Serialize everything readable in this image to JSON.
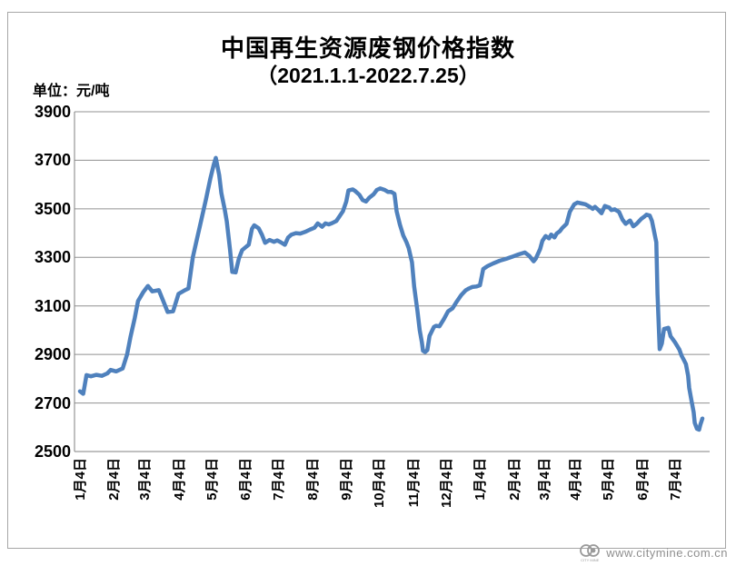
{
  "page": {
    "background": "#FFFFFF",
    "border_color": "#A6A6A6"
  },
  "header": {
    "title": "中国再生资源废钢价格指数",
    "subtitle": "（2021.1.1-2022.7.25）",
    "unit_label": "单位：元/吨"
  },
  "watermark": {
    "url": "www.citymine.com.cn",
    "logo_caption": "CITY MINE"
  },
  "chart_data": {
    "type": "line",
    "title": "中国再生资源废钢价格指数",
    "subtitle_range": "2021.1.1-2022.7.25",
    "ylabel": "元/吨",
    "ylim": [
      2500,
      3900
    ],
    "y_ticks": [
      2500,
      2700,
      2900,
      3100,
      3300,
      3500,
      3700,
      3900
    ],
    "grid": "horizontal",
    "legend": "none",
    "line_color": "#4F81BD",
    "gridline_color": "#909090",
    "axis_color": "#808080",
    "x_axis": {
      "span_days": 568,
      "ticks": [
        {
          "label": "1月4日",
          "day": 0
        },
        {
          "label": "2月4日",
          "day": 31
        },
        {
          "label": "3月4日",
          "day": 59
        },
        {
          "label": "4月4日",
          "day": 90
        },
        {
          "label": "5月4日",
          "day": 120
        },
        {
          "label": "6月4日",
          "day": 151
        },
        {
          "label": "7月4日",
          "day": 181
        },
        {
          "label": "8月4日",
          "day": 212
        },
        {
          "label": "9月4日",
          "day": 243
        },
        {
          "label": "10月4日",
          "day": 273
        },
        {
          "label": "11月4日",
          "day": 304
        },
        {
          "label": "12月4日",
          "day": 334
        },
        {
          "label": "1月4日",
          "day": 365
        },
        {
          "label": "2月4日",
          "day": 396
        },
        {
          "label": "3月4日",
          "day": 424
        },
        {
          "label": "4月4日",
          "day": 452
        },
        {
          "label": "5月4日",
          "day": 482
        },
        {
          "label": "6月4日",
          "day": 513
        },
        {
          "label": "7月4日",
          "day": 543
        }
      ]
    },
    "series": [
      {
        "points": [
          [
            0,
            2748
          ],
          [
            3,
            2738
          ],
          [
            6,
            2815
          ],
          [
            10,
            2810
          ],
          [
            15,
            2816
          ],
          [
            20,
            2812
          ],
          [
            25,
            2822
          ],
          [
            28,
            2836
          ],
          [
            33,
            2830
          ],
          [
            39,
            2842
          ],
          [
            43,
            2900
          ],
          [
            46,
            2970
          ],
          [
            50,
            3050
          ],
          [
            53,
            3120
          ],
          [
            58,
            3158
          ],
          [
            62,
            3182
          ],
          [
            66,
            3160
          ],
          [
            72,
            3165
          ],
          [
            76,
            3120
          ],
          [
            80,
            3075
          ],
          [
            85,
            3078
          ],
          [
            90,
            3150
          ],
          [
            95,
            3163
          ],
          [
            99,
            3172
          ],
          [
            103,
            3300
          ],
          [
            106,
            3360
          ],
          [
            111,
            3460
          ],
          [
            115,
            3540
          ],
          [
            119,
            3625
          ],
          [
            122,
            3680
          ],
          [
            124,
            3710
          ],
          [
            127,
            3640
          ],
          [
            129,
            3565
          ],
          [
            132,
            3500
          ],
          [
            134,
            3448
          ],
          [
            137,
            3330
          ],
          [
            139,
            3240
          ],
          [
            142,
            3238
          ],
          [
            145,
            3295
          ],
          [
            148,
            3330
          ],
          [
            152,
            3345
          ],
          [
            154,
            3352
          ],
          [
            157,
            3418
          ],
          [
            159,
            3432
          ],
          [
            163,
            3420
          ],
          [
            166,
            3394
          ],
          [
            169,
            3360
          ],
          [
            173,
            3372
          ],
          [
            177,
            3364
          ],
          [
            180,
            3370
          ],
          [
            183,
            3363
          ],
          [
            187,
            3352
          ],
          [
            190,
            3382
          ],
          [
            193,
            3394
          ],
          [
            197,
            3400
          ],
          [
            201,
            3398
          ],
          [
            206,
            3406
          ],
          [
            210,
            3415
          ],
          [
            214,
            3422
          ],
          [
            217,
            3440
          ],
          [
            221,
            3426
          ],
          [
            224,
            3440
          ],
          [
            227,
            3436
          ],
          [
            230,
            3441
          ],
          [
            234,
            3450
          ],
          [
            237,
            3470
          ],
          [
            240,
            3490
          ],
          [
            243,
            3530
          ],
          [
            245,
            3576
          ],
          [
            249,
            3580
          ],
          [
            251,
            3574
          ],
          [
            255,
            3558
          ],
          [
            258,
            3536
          ],
          [
            261,
            3530
          ],
          [
            264,
            3546
          ],
          [
            268,
            3560
          ],
          [
            271,
            3578
          ],
          [
            274,
            3584
          ],
          [
            278,
            3578
          ],
          [
            281,
            3570
          ],
          [
            284,
            3570
          ],
          [
            287,
            3562
          ],
          [
            289,
            3490
          ],
          [
            292,
            3435
          ],
          [
            295,
            3390
          ],
          [
            298,
            3362
          ],
          [
            300,
            3338
          ],
          [
            303,
            3280
          ],
          [
            305,
            3180
          ],
          [
            308,
            3080
          ],
          [
            310,
            3000
          ],
          [
            312,
            2950
          ],
          [
            313,
            2915
          ],
          [
            315,
            2910
          ],
          [
            317,
            2918
          ],
          [
            319,
            2976
          ],
          [
            323,
            3013
          ],
          [
            325,
            3018
          ],
          [
            328,
            3016
          ],
          [
            332,
            3045
          ],
          [
            336,
            3078
          ],
          [
            340,
            3090
          ],
          [
            344,
            3119
          ],
          [
            348,
            3145
          ],
          [
            352,
            3164
          ],
          [
            355,
            3172
          ],
          [
            358,
            3178
          ],
          [
            362,
            3180
          ],
          [
            365,
            3185
          ],
          [
            368,
            3252
          ],
          [
            372,
            3264
          ],
          [
            377,
            3275
          ],
          [
            383,
            3286
          ],
          [
            389,
            3294
          ],
          [
            394,
            3302
          ],
          [
            400,
            3312
          ],
          [
            406,
            3320
          ],
          [
            410,
            3306
          ],
          [
            414,
            3284
          ],
          [
            416,
            3295
          ],
          [
            420,
            3335
          ],
          [
            422,
            3368
          ],
          [
            425,
            3388
          ],
          [
            428,
            3378
          ],
          [
            430,
            3394
          ],
          [
            433,
            3382
          ],
          [
            435,
            3398
          ],
          [
            438,
            3408
          ],
          [
            440,
            3420
          ],
          [
            444,
            3438
          ],
          [
            447,
            3488
          ],
          [
            451,
            3518
          ],
          [
            454,
            3526
          ],
          [
            458,
            3522
          ],
          [
            461,
            3519
          ],
          [
            464,
            3512
          ],
          [
            468,
            3500
          ],
          [
            470,
            3508
          ],
          [
            473,
            3496
          ],
          [
            476,
            3482
          ],
          [
            479,
            3512
          ],
          [
            483,
            3505
          ],
          [
            485,
            3495
          ],
          [
            488,
            3498
          ],
          [
            492,
            3487
          ],
          [
            495,
            3456
          ],
          [
            498,
            3438
          ],
          [
            502,
            3452
          ],
          [
            505,
            3428
          ],
          [
            508,
            3438
          ],
          [
            512,
            3458
          ],
          [
            515,
            3468
          ],
          [
            517,
            3476
          ],
          [
            520,
            3472
          ],
          [
            522,
            3450
          ],
          [
            526,
            3362
          ],
          [
            527,
            3150
          ],
          [
            529,
            2922
          ],
          [
            531,
            2945
          ],
          [
            533,
            3005
          ],
          [
            537,
            3010
          ],
          [
            539,
            2975
          ],
          [
            543,
            2950
          ],
          [
            547,
            2920
          ],
          [
            549,
            2895
          ],
          [
            551,
            2878
          ],
          [
            553,
            2860
          ],
          [
            555,
            2812
          ],
          [
            556,
            2762
          ],
          [
            558,
            2712
          ],
          [
            560,
            2662
          ],
          [
            561,
            2618
          ],
          [
            563,
            2594
          ],
          [
            565,
            2590
          ],
          [
            566,
            2608
          ],
          [
            568,
            2636
          ]
        ]
      }
    ]
  }
}
